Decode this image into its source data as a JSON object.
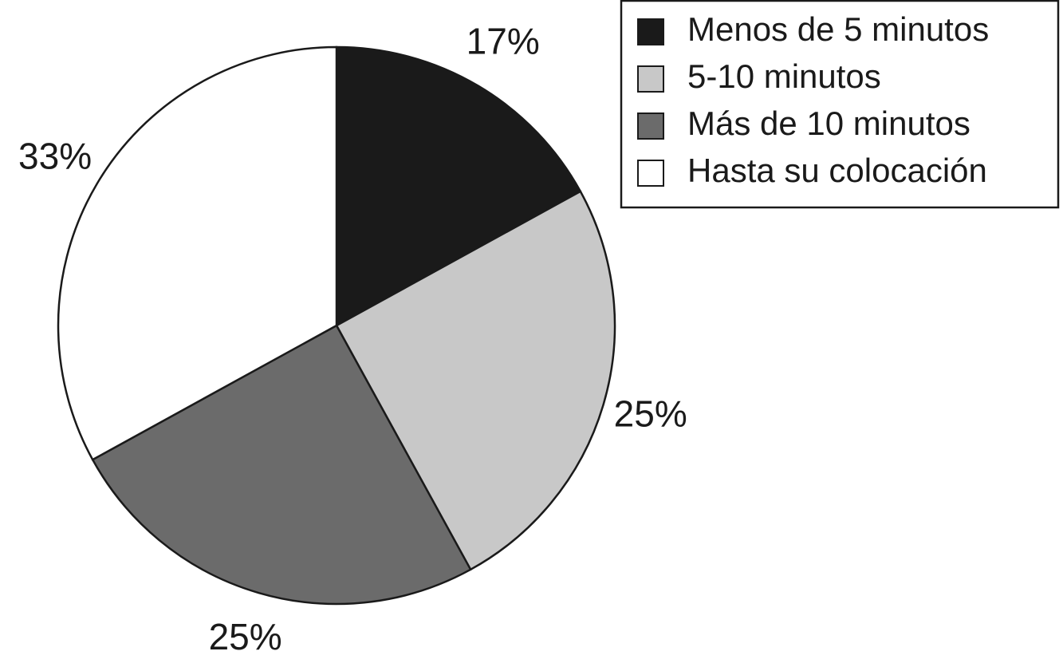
{
  "chart_data": {
    "type": "pie",
    "categories": [
      "Menos de 5 minutos",
      "5-10 minutos",
      "Más de 10 minutos",
      "Hasta su colocación"
    ],
    "values": [
      17,
      25,
      25,
      33
    ],
    "value_labels": [
      "17%",
      "25%",
      "25%",
      "33%"
    ],
    "colors": [
      "#1a1a1a",
      "#c8c8c8",
      "#6b6b6b",
      "#ffffff"
    ],
    "legend": "top-right"
  }
}
